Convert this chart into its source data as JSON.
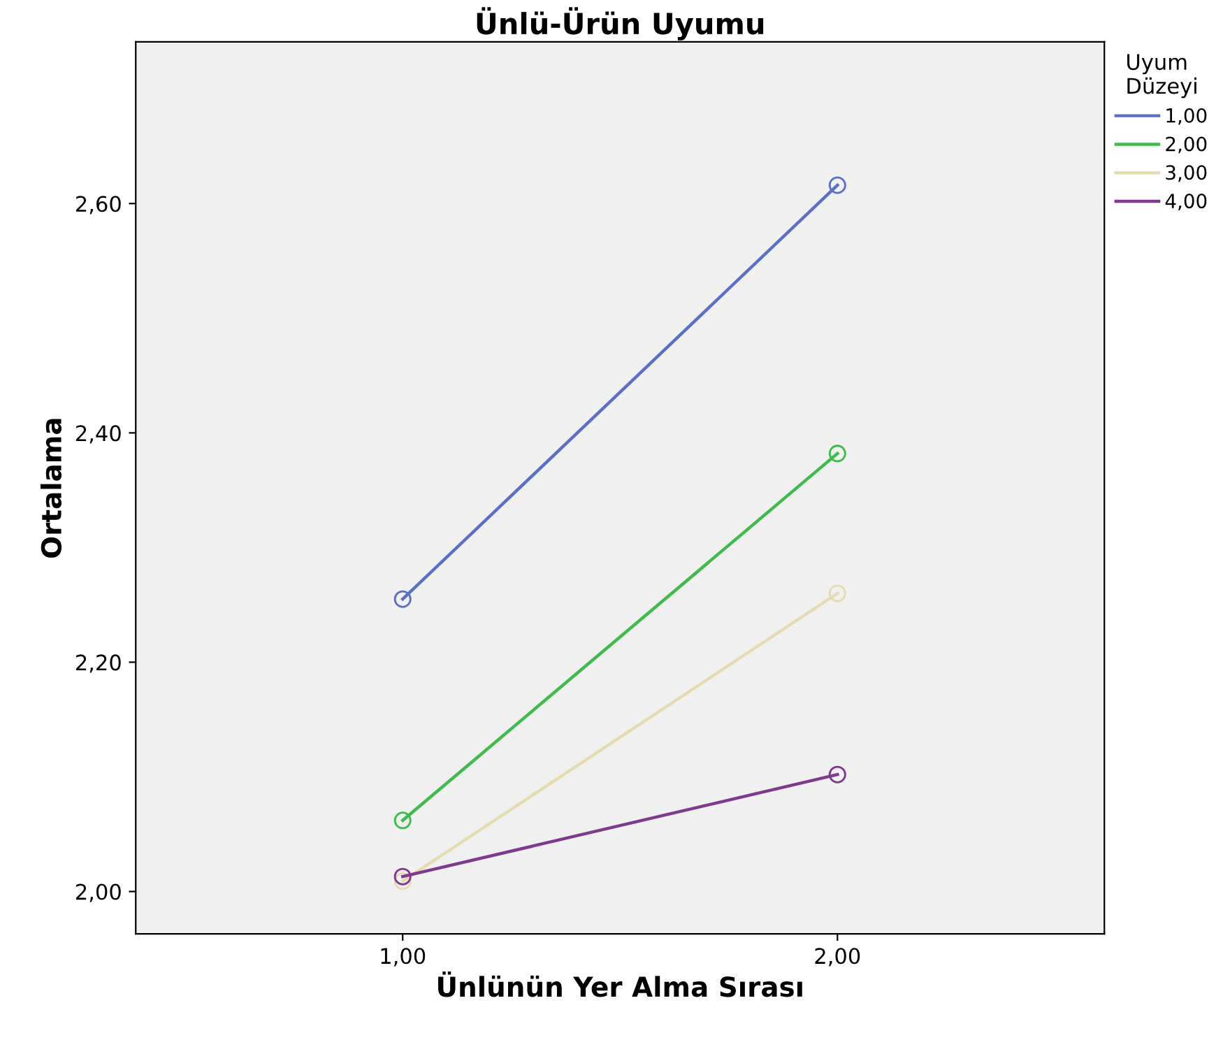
{
  "chart_data": {
    "type": "line",
    "title": "Ünlü-Ürün Uyumu",
    "xlabel": "Ünlünün Yer Alma Sırası",
    "ylabel": "Ortalama",
    "legend_title": "Uyum\nDüzeyi",
    "categories": [
      "1,00",
      "2,00"
    ],
    "series": [
      {
        "name": "1,00",
        "color": "#5b6fc6",
        "values": [
          2.255,
          2.616
        ]
      },
      {
        "name": "2,00",
        "color": "#3fbb4c",
        "values": [
          2.062,
          2.382
        ]
      },
      {
        "name": "3,00",
        "color": "#e4dcb0",
        "values": [
          2.009,
          2.26
        ]
      },
      {
        "name": "4,00",
        "color": "#7e3a8d",
        "values": [
          2.013,
          2.102
        ]
      }
    ],
    "ylim": [
      1.963,
      2.741
    ],
    "yticks": [
      {
        "value": 2.0,
        "label": "2,00"
      },
      {
        "value": 2.2,
        "label": "2,20"
      },
      {
        "value": 2.4,
        "label": "2,40"
      },
      {
        "value": 2.6,
        "label": "2,60"
      }
    ],
    "marker": "circle",
    "line_style": "solid",
    "grid": false,
    "legend": "right"
  }
}
